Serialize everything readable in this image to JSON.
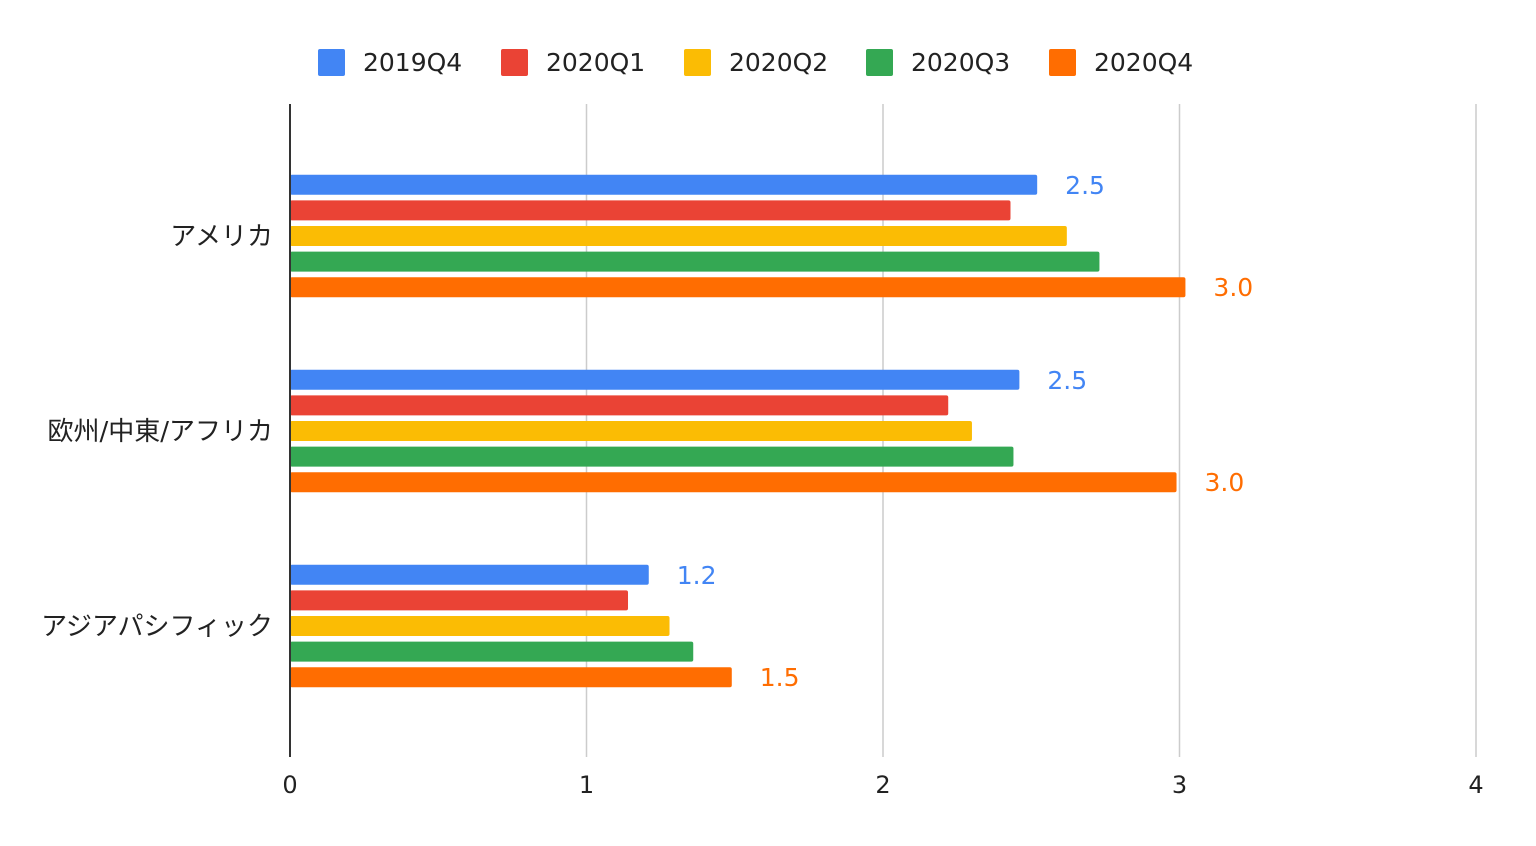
{
  "chart_data": {
    "type": "bar",
    "orientation": "horizontal",
    "title": "",
    "xlabel": "",
    "ylabel": "",
    "xlim": [
      0,
      4
    ],
    "x_ticks": [
      "0",
      "1",
      "2",
      "3",
      "4"
    ],
    "grid": true,
    "legend_position": "top",
    "categories": [
      "アメリカ",
      "欧州/中東/アフリカ",
      "アジアパシフィック"
    ],
    "series": [
      {
        "name": "2019Q4",
        "color": "#4285F4",
        "values": [
          2.52,
          2.46,
          1.21
        ],
        "labels": [
          "2.5",
          "2.5",
          "1.2"
        ]
      },
      {
        "name": "2020Q1",
        "color": "#EA4335",
        "values": [
          2.43,
          2.22,
          1.14
        ],
        "labels": [
          "",
          "",
          ""
        ]
      },
      {
        "name": "2020Q2",
        "color": "#FBBC04",
        "values": [
          2.62,
          2.3,
          1.28
        ],
        "labels": [
          "",
          "",
          ""
        ]
      },
      {
        "name": "2020Q3",
        "color": "#34A853",
        "values": [
          2.73,
          2.44,
          1.36
        ],
        "labels": [
          "",
          "",
          ""
        ]
      },
      {
        "name": "2020Q4",
        "color": "#FF6D01",
        "values": [
          3.02,
          2.99,
          1.49
        ],
        "labels": [
          "3.0",
          "3.0",
          "1.5"
        ]
      }
    ]
  }
}
